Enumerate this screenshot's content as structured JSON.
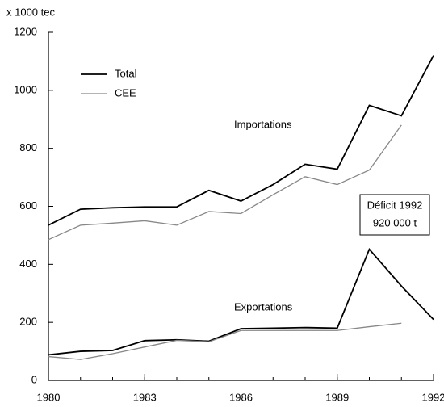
{
  "chart_data": {
    "type": "line",
    "y_axis_label": "x 1000 tec",
    "x": [
      1980,
      1981,
      1982,
      1983,
      1984,
      1985,
      1986,
      1987,
      1988,
      1989,
      1990,
      1991,
      1992
    ],
    "xlim": [
      1980,
      1992
    ],
    "xticks": [
      1980,
      1983,
      1986,
      1989,
      1992
    ],
    "ylim": [
      0,
      1200
    ],
    "yticks": [
      0,
      200,
      400,
      600,
      800,
      1000,
      1200
    ],
    "legend": "upper left",
    "series": [
      {
        "name": "Total",
        "color": "#000000",
        "values": [
          535,
          590,
          595,
          598,
          598,
          655,
          618,
          675,
          745,
          728,
          948,
          912,
          1120
        ]
      },
      {
        "name": "CEE",
        "color": "#888888",
        "values": [
          485,
          535,
          542,
          550,
          535,
          582,
          575,
          640,
          702,
          675,
          725,
          880,
          null
        ]
      },
      {
        "color": "#000000",
        "values": [
          88,
          100,
          103,
          137,
          140,
          135,
          178,
          180,
          182,
          180,
          452,
          325,
          210
        ]
      },
      {
        "color": "#888888",
        "values": [
          82,
          72,
          92,
          115,
          138,
          133,
          172,
          172,
          172,
          172,
          185,
          197,
          null
        ]
      }
    ],
    "annotations": [
      "Importations",
      "Exportations",
      "Déficit 1992",
      "920 000 t"
    ]
  }
}
